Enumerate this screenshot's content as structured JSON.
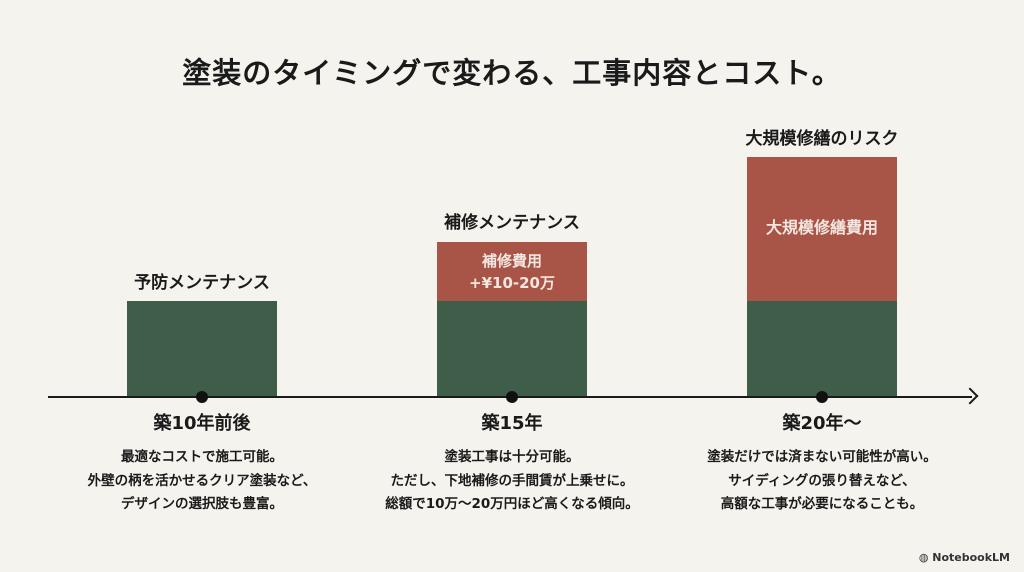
{
  "title": "塗装のタイミングで変わる、工事内容とコスト。",
  "colors": {
    "base_cost": "#3f5e4a",
    "extra_cost": "#a85447",
    "background": "#f5f3ee"
  },
  "stages": [
    {
      "heading": "予防メンテナンス",
      "extra_label": [],
      "timing": "築10年前後",
      "description": [
        "最適なコストで施工可能。",
        "外壁の柄を活かせるクリア塗装など、",
        "デザインの選択肢も豊富。"
      ]
    },
    {
      "heading": "補修メンテナンス",
      "extra_label": [
        "補修費用",
        "+¥10-20万"
      ],
      "timing": "築15年",
      "description": [
        "塗装工事は十分可能。",
        "ただし、下地補修の手間賃が上乗せに。",
        "総額で10万〜20万円ほど高くなる傾向。"
      ]
    },
    {
      "heading": "大規模修繕のリスク",
      "extra_label": [
        "大規模修繕費用"
      ],
      "timing": "築20年〜",
      "description": [
        "塗装だけでは済まない可能性が高い。",
        "サイディングの張り替えなど、",
        "高額な工事が必要になることも。"
      ]
    }
  ],
  "logo": "NotebookLM"
}
